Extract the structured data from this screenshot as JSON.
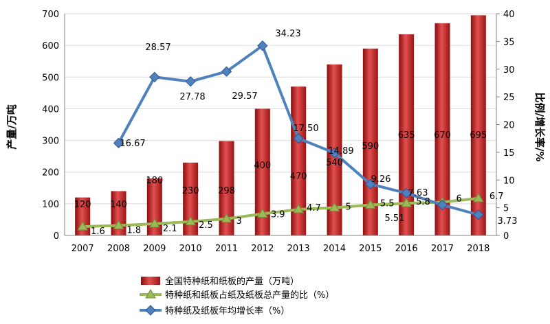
{
  "chart_data": {
    "type": "bar",
    "categories": [
      "2007",
      "2008",
      "2009",
      "2010",
      "2011",
      "2012",
      "2013",
      "2014",
      "2015",
      "2016",
      "2017",
      "2018"
    ],
    "series": [
      {
        "name": "全国特种纸和纸板的产量（万吨）",
        "kind": "bar",
        "axis": "left",
        "color": "#c00000",
        "values": [
          120,
          140,
          180,
          230,
          298,
          400,
          470,
          540,
          590,
          635,
          670,
          695
        ],
        "labels": [
          "120",
          "140",
          "180",
          "230",
          "298",
          "400",
          "470",
          "540",
          "590",
          "635",
          "670",
          "695"
        ]
      },
      {
        "name": "特种纸和纸板占纸及纸板总产量的比（%）",
        "kind": "line",
        "axis": "right",
        "color": "#9bbb59",
        "marker": "triangle",
        "values": [
          1.6,
          1.8,
          2.1,
          2.5,
          3,
          3.9,
          4.7,
          5,
          5.5,
          5.8,
          6,
          6.7
        ],
        "labels": [
          "1.6",
          "1.8",
          "2.1",
          "2.5",
          "3",
          "3.9",
          "4.7",
          "5",
          "5.5",
          "5.8",
          "6",
          "6.7"
        ]
      },
      {
        "name": "特种纸及纸板年均增长率（%）",
        "kind": "line",
        "axis": "right",
        "color": "#4f81bd",
        "marker": "diamond",
        "values": [
          null,
          16.67,
          28.57,
          27.78,
          29.57,
          34.23,
          17.5,
          14.89,
          9.26,
          7.63,
          5.51,
          3.73
        ],
        "labels": [
          "",
          "16.67",
          "28.57",
          "27.78",
          "29.57",
          "34.23",
          "17.50",
          "14.89",
          "9.26",
          "7.63",
          "5.51",
          "3.73"
        ]
      }
    ],
    "ylabel": "产量/万吨",
    "y2label": "比例/增长率/%",
    "ylim": [
      0,
      700
    ],
    "y2lim": [
      0,
      40
    ],
    "yticks": [
      "0",
      "100",
      "200",
      "300",
      "400",
      "500",
      "600",
      "700"
    ],
    "y2ticks": [
      "0",
      "5",
      "10",
      "15",
      "20",
      "25",
      "30",
      "35",
      "40"
    ],
    "legend_position": "bottom"
  }
}
